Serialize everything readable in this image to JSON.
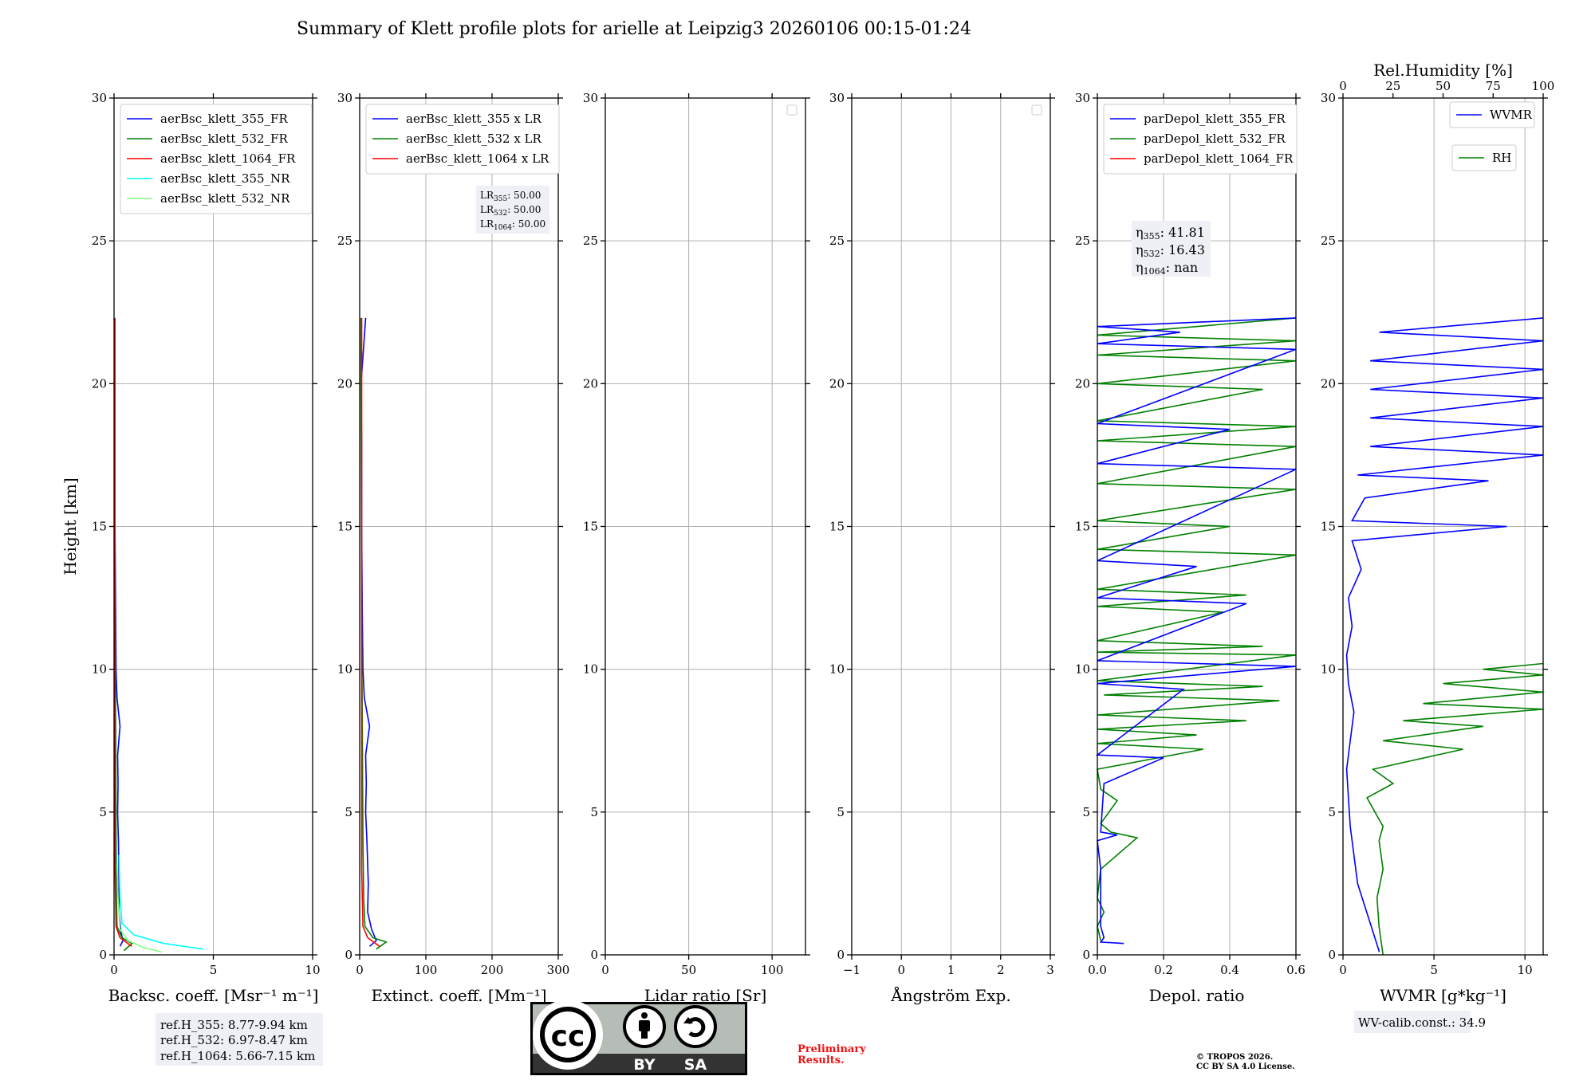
{
  "figure_title": "Summary of Klett profile plots for arielle at Leipzig3 20260106 00:15-01:24",
  "chart_data": [
    {
      "type": "line",
      "id": "bsc",
      "xlabel": "Backsc. coeff. [Msr⁻¹ m⁻¹]",
      "ylabel": "Height [km]",
      "xlim": [
        0,
        10
      ],
      "ylim": [
        0,
        30
      ],
      "xticks": [
        0,
        5,
        10
      ],
      "yticks": [
        0,
        5,
        10,
        15,
        20,
        25,
        30
      ],
      "legend": [
        {
          "label": "aerBsc_klett_355_FR",
          "color": "#0000ff"
        },
        {
          "label": "aerBsc_klett_532_FR",
          "color": "#008000"
        },
        {
          "label": "aerBsc_klett_1064_FR",
          "color": "#ff0000"
        },
        {
          "label": "aerBsc_klett_355_NR",
          "color": "#00ffff"
        },
        {
          "label": "aerBsc_klett_532_NR",
          "color": "#80ff80"
        }
      ],
      "series": [
        {
          "name": "aerBsc_klett_355_FR",
          "color": "#0000ff",
          "points": [
            [
              0.3,
              0.3
            ],
            [
              0.45,
              0.5
            ],
            [
              0.35,
              0.8
            ],
            [
              0.25,
              1.5
            ],
            [
              0.25,
              2.5
            ],
            [
              0.22,
              4
            ],
            [
              0.18,
              5
            ],
            [
              0.2,
              6
            ],
            [
              0.18,
              7
            ],
            [
              0.3,
              8
            ],
            [
              0.15,
              9
            ],
            [
              0.1,
              10
            ],
            [
              0.08,
              12
            ],
            [
              0.05,
              15
            ],
            [
              0.05,
              18
            ],
            [
              0.05,
              20
            ],
            [
              0.05,
              22.3
            ]
          ]
        },
        {
          "name": "aerBsc_klett_532_FR",
          "color": "#008000",
          "points": [
            [
              0.5,
              0.15
            ],
            [
              0.9,
              0.4
            ],
            [
              0.4,
              0.6
            ],
            [
              0.15,
              1
            ],
            [
              0.12,
              2
            ],
            [
              0.1,
              4
            ],
            [
              0.08,
              8
            ],
            [
              0.05,
              12
            ],
            [
              0.03,
              20
            ],
            [
              0.03,
              22.3
            ]
          ]
        },
        {
          "name": "aerBsc_klett_1064_FR",
          "color": "#ff0000",
          "points": [
            [
              0.9,
              0.3
            ],
            [
              0.3,
              0.6
            ],
            [
              0.1,
              1
            ],
            [
              0.05,
              3
            ],
            [
              0.05,
              10
            ],
            [
              0.05,
              22.3
            ]
          ]
        },
        {
          "name": "aerBsc_klett_355_NR",
          "color": "#00ffff",
          "points": [
            [
              4.5,
              0.2
            ],
            [
              2.5,
              0.4
            ],
            [
              1.0,
              0.7
            ],
            [
              0.4,
              1.1
            ],
            [
              0.3,
              2
            ],
            [
              0.25,
              3.5
            ]
          ]
        },
        {
          "name": "aerBsc_klett_532_NR",
          "color": "#80ff80",
          "points": [
            [
              2.4,
              0.1
            ],
            [
              1.5,
              0.25
            ],
            [
              0.7,
              0.5
            ],
            [
              0.3,
              0.9
            ],
            [
              0.2,
              2
            ],
            [
              0.15,
              3.2
            ]
          ]
        }
      ],
      "annotation": [
        "ref.H_355: 8.77-9.94 km",
        "ref.H_532: 6.97-8.47 km",
        "ref.H_1064: 5.66-7.15 km"
      ]
    },
    {
      "type": "line",
      "id": "ext",
      "xlabel": "Extinct. coeff. [Mm⁻¹]",
      "xlim": [
        0,
        300
      ],
      "ylim": [
        0,
        30
      ],
      "xticks": [
        0,
        100,
        200,
        300
      ],
      "yticks": [
        0,
        5,
        10,
        15,
        20,
        25,
        30
      ],
      "legend": [
        {
          "label": "aerBsc_klett_355 x LR",
          "color": "#0000ff"
        },
        {
          "label": "aerBsc_klett_532 x LR",
          "color": "#008000"
        },
        {
          "label": "aerBsc_klett_1064 x LR",
          "color": "#ff0000"
        }
      ],
      "series": [
        {
          "name": "aerBsc_klett_355 x LR",
          "color": "#0000ff",
          "points": [
            [
              15,
              0.3
            ],
            [
              25,
              0.5
            ],
            [
              18,
              0.9
            ],
            [
              12,
              1.5
            ],
            [
              13,
              2.5
            ],
            [
              11,
              4
            ],
            [
              9,
              5
            ],
            [
              10,
              6
            ],
            [
              9,
              7
            ],
            [
              15,
              8
            ],
            [
              7,
              9
            ],
            [
              5,
              10
            ],
            [
              4,
              12
            ],
            [
              3,
              15
            ],
            [
              3,
              18
            ],
            [
              2,
              20
            ],
            [
              9,
              22.3
            ]
          ]
        },
        {
          "name": "aerBsc_klett_532 x LR",
          "color": "#008000",
          "points": [
            [
              25,
              0.2
            ],
            [
              40,
              0.45
            ],
            [
              20,
              0.6
            ],
            [
              8,
              1
            ],
            [
              6,
              2
            ],
            [
              5,
              4
            ],
            [
              4,
              8
            ],
            [
              3,
              12
            ],
            [
              2,
              20
            ],
            [
              2,
              22.3
            ]
          ]
        },
        {
          "name": "aerBsc_klett_1064 x LR",
          "color": "#ff0000",
          "points": [
            [
              30,
              0.3
            ],
            [
              12,
              0.6
            ],
            [
              5,
              1
            ],
            [
              3,
              3
            ],
            [
              3,
              10
            ],
            [
              3,
              22.3
            ]
          ]
        }
      ],
      "annotation": [
        {
          "sym": "LR",
          "sub": "355",
          "val": ": 50.00"
        },
        {
          "sym": "LR",
          "sub": "532",
          "val": ": 50.00"
        },
        {
          "sym": "LR",
          "sub": "1064",
          "val": ": 50.00"
        }
      ]
    },
    {
      "type": "line",
      "id": "lr",
      "xlabel": "Lidar ratio [Sr]",
      "xlim": [
        0,
        120
      ],
      "ylim": [
        0,
        30
      ],
      "xticks": [
        0,
        50,
        100
      ],
      "yticks": [
        0,
        5,
        10,
        15,
        20,
        25,
        30
      ],
      "legend": [],
      "series": []
    },
    {
      "type": "line",
      "id": "ang",
      "xlabel": "Ångström Exp.",
      "xlim": [
        -1,
        3
      ],
      "ylim": [
        0,
        30
      ],
      "xticks": [
        -1,
        0,
        1,
        2,
        3
      ],
      "yticks": [
        0,
        5,
        10,
        15,
        20,
        25,
        30
      ],
      "legend": [],
      "series": []
    },
    {
      "type": "line",
      "id": "depol",
      "xlabel": "Depol. ratio",
      "xlim": [
        0,
        0.6
      ],
      "ylim": [
        0,
        30
      ],
      "xticks": [
        0.0,
        0.2,
        0.4,
        0.6
      ],
      "yticks": [
        0,
        5,
        10,
        15,
        20,
        25,
        30
      ],
      "legend": [
        {
          "label": "parDepol_klett_355_FR",
          "color": "#0000ff"
        },
        {
          "label": "parDepol_klett_532_FR",
          "color": "#008000"
        },
        {
          "label": "parDepol_klett_1064_FR",
          "color": "#ff0000"
        }
      ],
      "annotation": [
        {
          "sym": "η",
          "sub": "355",
          "val": ": 41.81"
        },
        {
          "sym": "η",
          "sub": "532",
          "val": ": 16.43"
        },
        {
          "sym": "η",
          "sub": "1064",
          "val": ": nan"
        }
      ],
      "series": [
        {
          "name": "parDepol_klett_532_FR",
          "color": "#008000",
          "points": [
            [
              0.01,
              0.5
            ],
            [
              0.0,
              1
            ],
            [
              0.02,
              1.5
            ],
            [
              0.0,
              2
            ],
            [
              0.01,
              3
            ],
            [
              0.12,
              4.1
            ],
            [
              0.04,
              4.3
            ],
            [
              0.01,
              4.6
            ],
            [
              0.06,
              5.4
            ],
            [
              0.01,
              5.8
            ],
            [
              0.0,
              6.5
            ],
            [
              0.32,
              7.2
            ],
            [
              0.0,
              7.4
            ],
            [
              0.3,
              7.7
            ],
            [
              0.0,
              7.9
            ],
            [
              0.45,
              8.2
            ],
            [
              0.0,
              8.4
            ],
            [
              0.55,
              8.9
            ],
            [
              0.02,
              9.1
            ],
            [
              0.5,
              9.4
            ],
            [
              0.0,
              9.6
            ],
            [
              0.6,
              10.5
            ],
            [
              0.0,
              10.6
            ],
            [
              0.5,
              10.8
            ],
            [
              0.0,
              11
            ],
            [
              0.38,
              12
            ],
            [
              0.0,
              12.2
            ],
            [
              0.45,
              12.6
            ],
            [
              0.0,
              12.8
            ],
            [
              0.6,
              14
            ],
            [
              0.0,
              14.2
            ],
            [
              0.4,
              15
            ],
            [
              0.0,
              15.2
            ],
            [
              0.6,
              16.3
            ],
            [
              0.0,
              16.5
            ],
            [
              0.6,
              17.8
            ],
            [
              0.0,
              18
            ],
            [
              0.6,
              18.5
            ],
            [
              0.0,
              18.7
            ],
            [
              0.5,
              19.8
            ],
            [
              0.0,
              20
            ],
            [
              0.6,
              20.8
            ],
            [
              0.0,
              21
            ],
            [
              0.6,
              21.5
            ],
            [
              0.0,
              21.7
            ],
            [
              0.6,
              22.3
            ]
          ]
        },
        {
          "name": "parDepol_klett_355_FR",
          "color": "#0000ff",
          "points": [
            [
              0.08,
              0.4
            ],
            [
              0.01,
              0.45
            ],
            [
              0.02,
              0.6
            ],
            [
              0.01,
              1
            ],
            [
              0.01,
              3
            ],
            [
              0.0,
              4.0
            ],
            [
              0.06,
              4.2
            ],
            [
              0.01,
              4.3
            ],
            [
              0.02,
              6
            ],
            [
              0.2,
              6.9
            ],
            [
              0.0,
              7.0
            ],
            [
              0.26,
              9.3
            ],
            [
              0.0,
              9.5
            ],
            [
              0.6,
              10.1
            ],
            [
              0.0,
              10.3
            ],
            [
              0.45,
              12.3
            ],
            [
              0.0,
              12.5
            ],
            [
              0.3,
              13.6
            ],
            [
              0.0,
              13.8
            ],
            [
              0.6,
              17
            ],
            [
              0.0,
              17.2
            ],
            [
              0.4,
              18.4
            ],
            [
              0.0,
              18.6
            ],
            [
              0.6,
              21.2
            ],
            [
              0.0,
              21.4
            ],
            [
              0.25,
              21.8
            ],
            [
              0.0,
              22
            ],
            [
              0.6,
              22.3
            ]
          ]
        }
      ]
    },
    {
      "type": "line",
      "id": "wv",
      "xlabel": "WVMR [g*kg⁻¹]",
      "xlabel_top": "Rel.Humidity [%]",
      "xlim": [
        0,
        11
      ],
      "xlim_top": [
        0,
        100
      ],
      "ylim": [
        0,
        30
      ],
      "xticks": [
        0,
        5,
        10
      ],
      "xticks_top": [
        0,
        25,
        50,
        75,
        100
      ],
      "yticks": [
        0,
        5,
        10,
        15,
        20,
        25,
        30
      ],
      "legend": [
        {
          "label": "WVMR",
          "color": "#0000ff"
        },
        {
          "label": "RH",
          "color": "#008000"
        }
      ],
      "annotation": [
        "WV-calib.const.: 34.9"
      ],
      "series": [
        {
          "name": "WVMR",
          "color": "#0000ff",
          "points": [
            [
              2.0,
              0.1
            ],
            [
              1.8,
              0.5
            ],
            [
              1.3,
              1.5
            ],
            [
              0.8,
              2.5
            ],
            [
              0.6,
              3.5
            ],
            [
              0.4,
              4.5
            ],
            [
              0.3,
              5.5
            ],
            [
              0.2,
              6.5
            ],
            [
              0.4,
              7.5
            ],
            [
              0.6,
              8.5
            ],
            [
              0.3,
              9.5
            ],
            [
              0.2,
              10.5
            ],
            [
              0.5,
              11.5
            ],
            [
              0.3,
              12.5
            ],
            [
              1.0,
              13.5
            ],
            [
              0.5,
              14.5
            ],
            [
              9.0,
              15.0
            ],
            [
              0.5,
              15.2
            ],
            [
              1.2,
              16
            ],
            [
              8.0,
              16.6
            ],
            [
              0.8,
              16.8
            ],
            [
              11,
              17.5
            ],
            [
              1.5,
              17.8
            ],
            [
              11,
              18.5
            ],
            [
              1.5,
              18.8
            ],
            [
              11,
              19.5
            ],
            [
              1.5,
              19.8
            ],
            [
              11,
              20.5
            ],
            [
              1.5,
              20.8
            ],
            [
              11,
              21.5
            ],
            [
              2.0,
              21.8
            ],
            [
              11,
              22.3
            ]
          ]
        },
        {
          "name": "RH",
          "color": "#008000",
          "points": [
            [
              20,
              0
            ],
            [
              18,
              1
            ],
            [
              17,
              2
            ],
            [
              20,
              3
            ],
            [
              18,
              4
            ],
            [
              20,
              4.5
            ],
            [
              12,
              5.5
            ],
            [
              25,
              6
            ],
            [
              15,
              6.5
            ],
            [
              60,
              7.2
            ],
            [
              20,
              7.5
            ],
            [
              70,
              8
            ],
            [
              30,
              8.2
            ],
            [
              100,
              8.6
            ],
            [
              40,
              8.8
            ],
            [
              100,
              9.2
            ],
            [
              50,
              9.5
            ],
            [
              100,
              9.8
            ],
            [
              70,
              10
            ],
            [
              100,
              10.2
            ]
          ]
        }
      ]
    }
  ],
  "footer": {
    "cc_badge": [
      "cc",
      "BY",
      "SA"
    ],
    "preliminary": [
      "Preliminary",
      "Results."
    ],
    "copyright": [
      "© TROPOS 2026.",
      "CC BY SA 4.0 License."
    ]
  }
}
